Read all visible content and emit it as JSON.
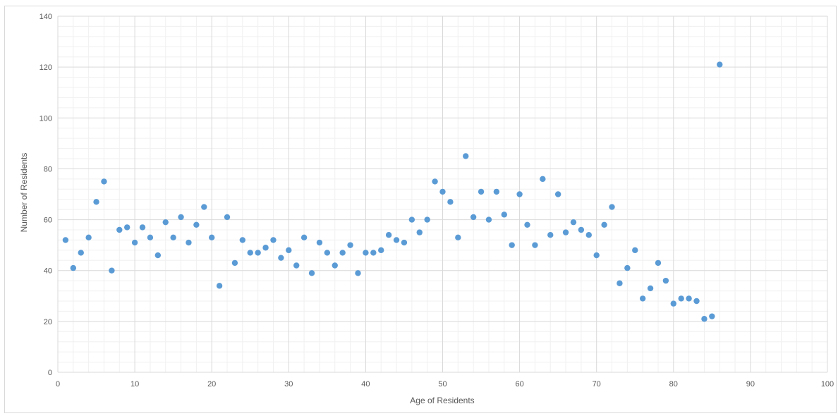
{
  "chart_data": {
    "type": "scatter",
    "title": "",
    "xlabel": "Age of Residents",
    "ylabel": "Number of Residents",
    "xlim": [
      0,
      100
    ],
    "ylim": [
      0,
      140
    ],
    "x_major_ticks": [
      0,
      10,
      20,
      30,
      40,
      50,
      60,
      70,
      80,
      90,
      100
    ],
    "y_major_ticks": [
      0,
      20,
      40,
      60,
      80,
      100,
      120,
      140
    ],
    "y_tick_labels": [
      "0",
      "20",
      "40",
      "60",
      "80",
      "100",
      "120",
      "140"
    ],
    "x_minor_step": 2,
    "y_minor_step": 4,
    "grid": true,
    "legend": "none",
    "marker_color": "#5b9bd5",
    "major_grid_color": "#d9d9d9",
    "minor_grid_color": "#f0f0f0",
    "points": [
      [
        1,
        52
      ],
      [
        2,
        41
      ],
      [
        3,
        47
      ],
      [
        4,
        53
      ],
      [
        5,
        67
      ],
      [
        6,
        75
      ],
      [
        7,
        40
      ],
      [
        8,
        56
      ],
      [
        9,
        57
      ],
      [
        10,
        51
      ],
      [
        11,
        57
      ],
      [
        12,
        53
      ],
      [
        13,
        46
      ],
      [
        14,
        59
      ],
      [
        15,
        53
      ],
      [
        16,
        61
      ],
      [
        17,
        51
      ],
      [
        18,
        58
      ],
      [
        19,
        65
      ],
      [
        20,
        53
      ],
      [
        21,
        34
      ],
      [
        22,
        61
      ],
      [
        23,
        43
      ],
      [
        24,
        52
      ],
      [
        25,
        47
      ],
      [
        26,
        47
      ],
      [
        27,
        49
      ],
      [
        28,
        52
      ],
      [
        29,
        45
      ],
      [
        30,
        48
      ],
      [
        31,
        42
      ],
      [
        32,
        53
      ],
      [
        33,
        39
      ],
      [
        34,
        51
      ],
      [
        35,
        47
      ],
      [
        36,
        42
      ],
      [
        37,
        47
      ],
      [
        38,
        50
      ],
      [
        39,
        39
      ],
      [
        40,
        47
      ],
      [
        41,
        47
      ],
      [
        42,
        48
      ],
      [
        43,
        54
      ],
      [
        44,
        52
      ],
      [
        45,
        51
      ],
      [
        46,
        60
      ],
      [
        47,
        55
      ],
      [
        48,
        60
      ],
      [
        49,
        75
      ],
      [
        50,
        71
      ],
      [
        51,
        67
      ],
      [
        52,
        53
      ],
      [
        53,
        85
      ],
      [
        54,
        61
      ],
      [
        55,
        71
      ],
      [
        56,
        60
      ],
      [
        57,
        71
      ],
      [
        58,
        62
      ],
      [
        59,
        50
      ],
      [
        60,
        70
      ],
      [
        61,
        58
      ],
      [
        62,
        50
      ],
      [
        63,
        76
      ],
      [
        64,
        54
      ],
      [
        65,
        70
      ],
      [
        66,
        55
      ],
      [
        67,
        59
      ],
      [
        68,
        56
      ],
      [
        69,
        54
      ],
      [
        70,
        46
      ],
      [
        71,
        58
      ],
      [
        72,
        65
      ],
      [
        73,
        35
      ],
      [
        74,
        41
      ],
      [
        75,
        48
      ],
      [
        76,
        29
      ],
      [
        77,
        33
      ],
      [
        78,
        43
      ],
      [
        79,
        36
      ],
      [
        80,
        27
      ],
      [
        81,
        29
      ],
      [
        82,
        29
      ],
      [
        83,
        28
      ],
      [
        84,
        21
      ],
      [
        85,
        22
      ],
      [
        86,
        121
      ]
    ]
  }
}
